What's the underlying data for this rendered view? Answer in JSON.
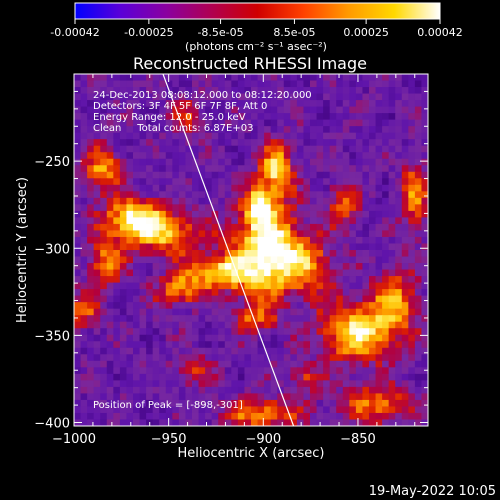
{
  "colorbar": {
    "ticks": [
      "-0.00042",
      "-0.00025",
      "-8.5e-05",
      "8.5e-05",
      "0.00025",
      "0.00042"
    ],
    "tick_values": [
      -0.00042,
      -0.00025,
      -8.5e-05,
      8.5e-05,
      0.00025,
      0.00042
    ],
    "range": [
      -0.00042,
      0.00042
    ],
    "units_label": "(photons cm⁻² s⁻¹ asec⁻²)",
    "colors": [
      "#0000ff",
      "#5a00d8",
      "#8a00a0",
      "#b00050",
      "#d00000",
      "#ff4000",
      "#ff9a00",
      "#ffd800",
      "#ffffff"
    ]
  },
  "annotations": {
    "line1": "24-Dec-2013 08:08:12.000 to 08:12:20.000",
    "line2": "Detectors: 3F 4F 5F 6F 7F 8F, Att 0",
    "line3": "Energy Range: 12.0 - 25.0 keV",
    "line4": "Clean     Total counts: 6.87E+03",
    "peak": "Position of Peak = [-898,-301]"
  },
  "footer_timestamp": "19-May-2022 10:05",
  "chart_data": {
    "type": "heatmap",
    "title": "Reconstructed RHESSI Image",
    "xlabel": "Heliocentric X (arcsec)",
    "ylabel": "Heliocentric Y (arcsec)",
    "xlim": [
      -1000,
      -813
    ],
    "ylim": [
      -402,
      -200
    ],
    "xticks": [
      -1000,
      -950,
      -900,
      -850
    ],
    "yticks": [
      -250,
      -300,
      -350,
      -400
    ],
    "limb_line": [
      [
        -953,
        -200
      ],
      [
        -884,
        -402
      ]
    ],
    "peak": [
      -898,
      -301
    ],
    "grid": false,
    "blobs": [
      {
        "x": -898,
        "y": -301,
        "sx": 12,
        "sy": 18,
        "amp": 1.0
      },
      {
        "x": -893,
        "y": -255,
        "sx": 6,
        "sy": 10,
        "amp": 0.75
      },
      {
        "x": -902,
        "y": -275,
        "sx": 5,
        "sy": 7,
        "amp": 0.8
      },
      {
        "x": -968,
        "y": -283,
        "sx": 11,
        "sy": 8,
        "amp": 0.85
      },
      {
        "x": -950,
        "y": -292,
        "sx": 14,
        "sy": 8,
        "amp": 0.6
      },
      {
        "x": -985,
        "y": -255,
        "sx": 7,
        "sy": 9,
        "amp": 0.6
      },
      {
        "x": -983,
        "y": -308,
        "sx": 7,
        "sy": 10,
        "amp": 0.55
      },
      {
        "x": -995,
        "y": -335,
        "sx": 6,
        "sy": 8,
        "amp": 0.45
      },
      {
        "x": -925,
        "y": -314,
        "sx": 13,
        "sy": 7,
        "amp": 0.75
      },
      {
        "x": -945,
        "y": -325,
        "sx": 8,
        "sy": 6,
        "amp": 0.55
      },
      {
        "x": -905,
        "y": -340,
        "sx": 8,
        "sy": 6,
        "amp": 0.45
      },
      {
        "x": -876,
        "y": -310,
        "sx": 10,
        "sy": 11,
        "amp": 0.5
      },
      {
        "x": -850,
        "y": -348,
        "sx": 14,
        "sy": 12,
        "amp": 0.8
      },
      {
        "x": -830,
        "y": -330,
        "sx": 8,
        "sy": 12,
        "amp": 0.55
      },
      {
        "x": -820,
        "y": -270,
        "sx": 5,
        "sy": 14,
        "amp": 0.55
      },
      {
        "x": -858,
        "y": -275,
        "sx": 6,
        "sy": 9,
        "amp": 0.45
      },
      {
        "x": -840,
        "y": -390,
        "sx": 12,
        "sy": 8,
        "amp": 0.55
      },
      {
        "x": -900,
        "y": -395,
        "sx": 14,
        "sy": 6,
        "amp": 0.6
      },
      {
        "x": -937,
        "y": -370,
        "sx": 8,
        "sy": 6,
        "amp": 0.35
      },
      {
        "x": -940,
        "y": -225,
        "sx": 6,
        "sy": 8,
        "amp": 0.35
      },
      {
        "x": -878,
        "y": -375,
        "sx": 6,
        "sy": 6,
        "amp": 0.4
      }
    ]
  }
}
